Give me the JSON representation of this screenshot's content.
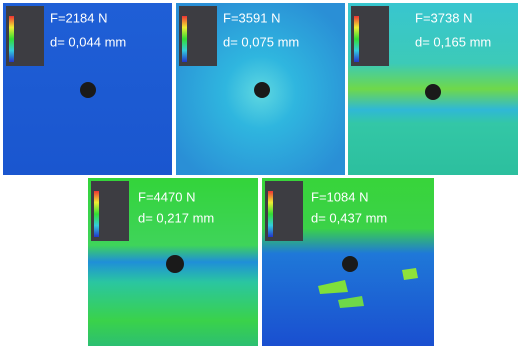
{
  "panels": [
    {
      "force": "F=2184 N",
      "displacement": "d= 0,044 mm"
    },
    {
      "force": "F=3591 N",
      "displacement": "d= 0,075 mm"
    },
    {
      "force": "F=3738 N",
      "displacement": "d= 0,165 mm"
    },
    {
      "force": "F=4470 N",
      "displacement": "d= 0,217 mm"
    },
    {
      "force": "F=1084 N",
      "displacement": "d= 0,437 mm"
    }
  ]
}
